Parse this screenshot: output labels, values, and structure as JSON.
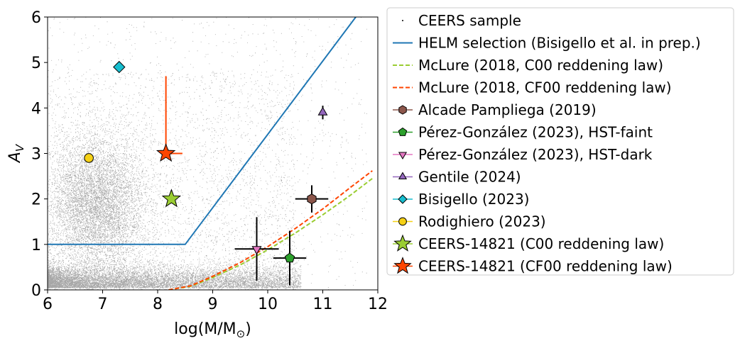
{
  "chart_data": {
    "type": "scatter",
    "xlabel": "log(M/M",
    "xlabel_sub": "⊙",
    "xlabel_close": ")",
    "ylabel": "A",
    "ylabel_sub": "V",
    "xlim": [
      6,
      12
    ],
    "ylim": [
      0,
      6
    ],
    "xticks": [
      6,
      7,
      8,
      9,
      10,
      11,
      12
    ],
    "yticks": [
      0,
      1,
      2,
      3,
      4,
      5,
      6
    ],
    "grid": false,
    "legend_position": "outside-right",
    "series": [
      {
        "name": "CEERS sample",
        "kind": "dots",
        "color": "#000000"
      },
      {
        "name": "HELM selection (Bisigello et al. in prep.)",
        "kind": "line",
        "color": "#1f77b4",
        "points": [
          [
            6,
            1.0
          ],
          [
            8.5,
            1.0
          ],
          [
            11.6,
            6.0
          ]
        ]
      },
      {
        "name": "McLure (2018, C00 reddening law)",
        "kind": "dashed",
        "color": "#9acd32",
        "points": [
          [
            8.2,
            0.0
          ],
          [
            8.6,
            0.08
          ],
          [
            9.0,
            0.27
          ],
          [
            9.5,
            0.55
          ],
          [
            10.0,
            0.88
          ],
          [
            10.5,
            1.25
          ],
          [
            11.0,
            1.65
          ],
          [
            11.5,
            2.08
          ],
          [
            11.9,
            2.45
          ]
        ]
      },
      {
        "name": "McLure (2018, CF00 reddening law)",
        "kind": "dashed",
        "color": "#ff4500",
        "points": [
          [
            8.2,
            0.0
          ],
          [
            8.6,
            0.09
          ],
          [
            9.0,
            0.3
          ],
          [
            9.5,
            0.6
          ],
          [
            10.0,
            0.95
          ],
          [
            10.5,
            1.35
          ],
          [
            11.0,
            1.78
          ],
          [
            11.5,
            2.25
          ],
          [
            11.9,
            2.62
          ]
        ]
      },
      {
        "name": "Alcade Pampliega (2019)",
        "kind": "marker",
        "marker": "hexagon",
        "color": "#8c564b",
        "points": [
          {
            "x": 10.8,
            "y": 2.0,
            "xerr": 0.3,
            "yerr": 0.3
          }
        ]
      },
      {
        "name": "Pérez-González (2023), HST-faint",
        "kind": "marker",
        "marker": "pentagon",
        "color": "#2ca02c",
        "points": [
          {
            "x": 10.4,
            "y": 0.7,
            "xerr": 0.3,
            "yerr": 0.6
          }
        ]
      },
      {
        "name": "Pérez-González (2023), HST-dark",
        "kind": "marker",
        "marker": "triangle-down",
        "color": "#e377c2",
        "points": [
          {
            "x": 9.8,
            "y": 0.9,
            "xerr": 0.4,
            "yerr": 0.7
          }
        ]
      },
      {
        "name": "Gentile (2024)",
        "kind": "marker",
        "marker": "triangle-up",
        "color": "#9467bd",
        "points": [
          {
            "x": 11.0,
            "y": 3.9,
            "xerr": 0.0,
            "yerr": 0.15
          }
        ]
      },
      {
        "name": "Bisigello (2023)",
        "kind": "marker",
        "marker": "diamond",
        "color": "#17becf",
        "points": [
          {
            "x": 7.3,
            "y": 4.9
          }
        ]
      },
      {
        "name": "Rodighiero (2023)",
        "kind": "marker",
        "marker": "circle",
        "color": "#f5d116",
        "points": [
          {
            "x": 6.75,
            "y": 2.9
          }
        ]
      },
      {
        "name": "CEERS-14821 (C00 reddening law)",
        "kind": "marker",
        "marker": "star",
        "color": "#9acd32",
        "points": [
          {
            "x": 8.25,
            "y": 2.0
          }
        ]
      },
      {
        "name": "CEERS-14821 (CF00 reddening law)",
        "kind": "marker",
        "marker": "star",
        "color": "#ff4500",
        "points": [
          {
            "x": 8.15,
            "y": 3.0,
            "xerr_minus": 0.0,
            "xerr_plus": 0.3,
            "yerr_minus": 0.0,
            "yerr_plus": 1.7
          }
        ]
      }
    ]
  }
}
